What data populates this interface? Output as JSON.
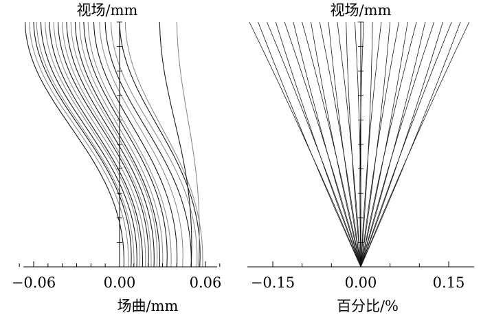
{
  "chart_data": [
    {
      "type": "line",
      "panel": "field-curvature",
      "ylabel": "视场/mm",
      "xlabel": "场曲/mm",
      "xlim": [
        -0.075,
        0.07
      ],
      "x_ticks": [
        -0.06,
        0.0,
        0.06
      ],
      "x_tick_labels": [
        "−0.06",
        "0.00",
        "0.06"
      ],
      "x_minor_tick_step": 0.01,
      "ylim": [
        0,
        1
      ],
      "y_tick_labels_shown": false,
      "grid": false,
      "legend": "none",
      "line_colors": [
        "#1a1a1a",
        "#8c8c8c"
      ],
      "series_note_values": "Many overlapping traces; each trace given as x at y = 0 (axis) and x at y = 1 (top edge).",
      "series": [
        {
          "x": [
            0.003,
            -0.066
          ],
          "y": [
            0,
            1
          ]
        },
        {
          "x": [
            0.006,
            -0.063
          ],
          "y": [
            0,
            1
          ]
        },
        {
          "x": [
            0.008,
            -0.06
          ],
          "y": [
            0,
            1
          ]
        },
        {
          "x": [
            0.01,
            -0.058
          ],
          "y": [
            0,
            1
          ]
        },
        {
          "x": [
            0.012,
            -0.055
          ],
          "y": [
            0,
            1
          ]
        },
        {
          "x": [
            0.014,
            -0.052
          ],
          "y": [
            0,
            1
          ]
        },
        {
          "x": [
            0.016,
            -0.049
          ],
          "y": [
            0,
            1
          ]
        },
        {
          "x": [
            0.018,
            -0.046
          ],
          "y": [
            0,
            1
          ]
        },
        {
          "x": [
            0.02,
            -0.043
          ],
          "y": [
            0,
            1
          ]
        },
        {
          "x": [
            0.022,
            -0.04
          ],
          "y": [
            0,
            1
          ]
        },
        {
          "x": [
            0.024,
            -0.037
          ],
          "y": [
            0,
            1
          ]
        },
        {
          "x": [
            0.026,
            -0.034
          ],
          "y": [
            0,
            1
          ]
        },
        {
          "x": [
            0.028,
            -0.031
          ],
          "y": [
            0,
            1
          ]
        },
        {
          "x": [
            0.03,
            -0.028
          ],
          "y": [
            0,
            1
          ]
        },
        {
          "x": [
            0.033,
            -0.025
          ],
          "y": [
            0,
            1
          ]
        },
        {
          "x": [
            0.036,
            -0.022
          ],
          "y": [
            0,
            1
          ]
        },
        {
          "x": [
            0.04,
            -0.018
          ],
          "y": [
            0,
            1
          ]
        },
        {
          "x": [
            0.044,
            -0.014
          ],
          "y": [
            0,
            1
          ]
        },
        {
          "x": [
            0.05,
            -0.01
          ],
          "y": [
            0,
            1
          ]
        },
        {
          "x": [
            0.054,
            -0.006
          ],
          "y": [
            0,
            1
          ]
        },
        {
          "x": [
            0.056,
            0.0
          ],
          "y": [
            0,
            1
          ]
        },
        {
          "x": [
            0.058,
            0.004
          ],
          "y": [
            0,
            1
          ]
        },
        {
          "x": [
            0.05,
            0.028
          ],
          "y": [
            0,
            1
          ]
        },
        {
          "x": [
            0.055,
            0.04
          ],
          "y": [
            0,
            1
          ]
        }
      ]
    },
    {
      "type": "line",
      "panel": "distortion",
      "ylabel": "视场/mm",
      "xlabel": "百分比/%",
      "xlim": [
        -0.19,
        0.19
      ],
      "x_ticks": [
        -0.15,
        0.0,
        0.15
      ],
      "x_tick_labels": [
        "−0.15",
        "0.00",
        "0.15"
      ],
      "x_minor_tick_step": 0.05,
      "ylim": [
        0,
        1
      ],
      "y_tick_labels_shown": false,
      "grid": false,
      "legend": "none",
      "line_colors": [
        "#1a1a1a"
      ],
      "series_note_values": "Fan of traces starting at (0, 0); each given by its x value at the top edge (y = 1).",
      "series": [
        {
          "x": [
            0,
            -0.19
          ],
          "y": [
            0,
            1
          ]
        },
        {
          "x": [
            0,
            -0.175
          ],
          "y": [
            0,
            1
          ]
        },
        {
          "x": [
            0,
            -0.16
          ],
          "y": [
            0,
            1
          ]
        },
        {
          "x": [
            0,
            -0.145
          ],
          "y": [
            0,
            1
          ]
        },
        {
          "x": [
            0,
            -0.13
          ],
          "y": [
            0,
            1
          ]
        },
        {
          "x": [
            0,
            -0.115
          ],
          "y": [
            0,
            1
          ]
        },
        {
          "x": [
            0,
            -0.1
          ],
          "y": [
            0,
            1
          ]
        },
        {
          "x": [
            0,
            -0.085
          ],
          "y": [
            0,
            1
          ]
        },
        {
          "x": [
            0,
            -0.07
          ],
          "y": [
            0,
            1
          ]
        },
        {
          "x": [
            0,
            -0.055
          ],
          "y": [
            0,
            1
          ]
        },
        {
          "x": [
            0,
            -0.04
          ],
          "y": [
            0,
            1
          ]
        },
        {
          "x": [
            0,
            -0.025
          ],
          "y": [
            0,
            1
          ]
        },
        {
          "x": [
            0,
            -0.01
          ],
          "y": [
            0,
            1
          ]
        },
        {
          "x": [
            0,
            0.005
          ],
          "y": [
            0,
            1
          ]
        },
        {
          "x": [
            0,
            0.02
          ],
          "y": [
            0,
            1
          ]
        },
        {
          "x": [
            0,
            0.035
          ],
          "y": [
            0,
            1
          ]
        },
        {
          "x": [
            0,
            0.05
          ],
          "y": [
            0,
            1
          ]
        },
        {
          "x": [
            0,
            0.065
          ],
          "y": [
            0,
            1
          ]
        },
        {
          "x": [
            0,
            0.08
          ],
          "y": [
            0,
            1
          ]
        },
        {
          "x": [
            0,
            0.095
          ],
          "y": [
            0,
            1
          ]
        },
        {
          "x": [
            0,
            0.11
          ],
          "y": [
            0,
            1
          ]
        },
        {
          "x": [
            0,
            0.125
          ],
          "y": [
            0,
            1
          ]
        },
        {
          "x": [
            0,
            0.14
          ],
          "y": [
            0,
            1
          ]
        },
        {
          "x": [
            0,
            0.155
          ],
          "y": [
            0,
            1
          ]
        },
        {
          "x": [
            0,
            0.17
          ],
          "y": [
            0,
            1
          ]
        },
        {
          "x": [
            0,
            0.185
          ],
          "y": [
            0,
            1
          ]
        }
      ]
    }
  ]
}
